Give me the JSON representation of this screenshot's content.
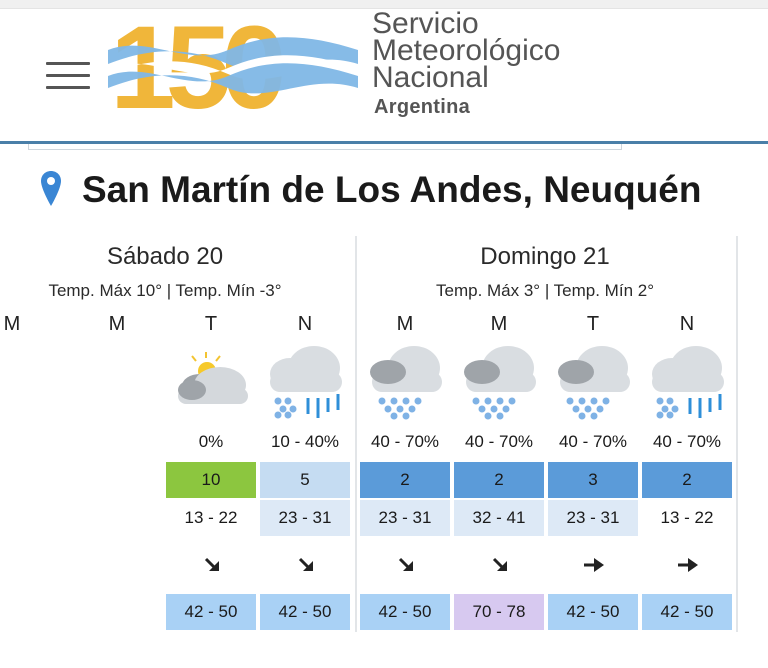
{
  "header": {
    "logo_number": "150",
    "org_lines": [
      "Servicio",
      "Meteorológico",
      "Nacional"
    ],
    "country": "Argentina",
    "menu_icon": "hamburger-menu-icon"
  },
  "location": {
    "name": "San Martín de Los Andes, Neuquén",
    "icon": "map-pin-icon"
  },
  "days": [
    {
      "title": "Sábado 20",
      "temps": "Temp. Máx 10° | Temp. Mín -3°"
    },
    {
      "title": "Domingo 21",
      "temps": "Temp. Máx 3° | Temp. Mín 2°"
    }
  ],
  "periods": [
    {
      "label": "M",
      "icon": "",
      "prob": "",
      "index": "",
      "wind": "",
      "dir": "",
      "gust": ""
    },
    {
      "label": "T",
      "icon": "partly-cloudy-icon",
      "prob": "0%",
      "index": "10",
      "index_color": "#8cc63f",
      "wind": "13 - 22",
      "wind_bg": "#ffffff",
      "dir": "southeast-arrow-icon",
      "gust": "42 - 50",
      "gust_bg": "#a9d1f5"
    },
    {
      "label": "N",
      "icon": "rain-snow-icon",
      "prob": "10 - 40%",
      "index": "5",
      "index_color": "#c5dcf2",
      "wind": "23 - 31",
      "wind_bg": "#dde9f6",
      "dir": "southeast-arrow-icon",
      "gust": "42 - 50",
      "gust_bg": "#a9d1f5"
    },
    {
      "label": "M",
      "icon": "snow-cloud-icon",
      "prob": "40 - 70%",
      "index": "2",
      "index_color": "#5b9bd9",
      "wind": "23 - 31",
      "wind_bg": "#dde9f6",
      "dir": "southeast-arrow-icon",
      "gust": "42 - 50",
      "gust_bg": "#a9d1f5"
    },
    {
      "label": "M",
      "icon": "snow-cloud-icon",
      "prob": "40 - 70%",
      "index": "2",
      "index_color": "#5b9bd9",
      "wind": "32 - 41",
      "wind_bg": "#dde9f6",
      "dir": "southeast-arrow-icon",
      "gust": "70 - 78",
      "gust_bg": "#d7c9f0"
    },
    {
      "label": "T",
      "icon": "snow-cloud-icon",
      "prob": "40 - 70%",
      "index": "3",
      "index_color": "#5b9bd9",
      "wind": "23 - 31",
      "wind_bg": "#dde9f6",
      "dir": "east-arrow-icon",
      "gust": "42 - 50",
      "gust_bg": "#a9d1f5"
    },
    {
      "label": "N",
      "icon": "rain-snow-icon",
      "prob": "40 - 70%",
      "index": "2",
      "index_color": "#5b9bd9",
      "wind": "13 - 22",
      "wind_bg": "#ffffff",
      "dir": "east-arrow-icon",
      "gust": "42 - 50",
      "gust_bg": "#a9d1f5"
    }
  ],
  "partial_label": "M",
  "colors": {
    "brand_blue": "#4a7fa8",
    "logo_gold": "#f0b63a",
    "logo_sky": "#7fb7e6"
  }
}
